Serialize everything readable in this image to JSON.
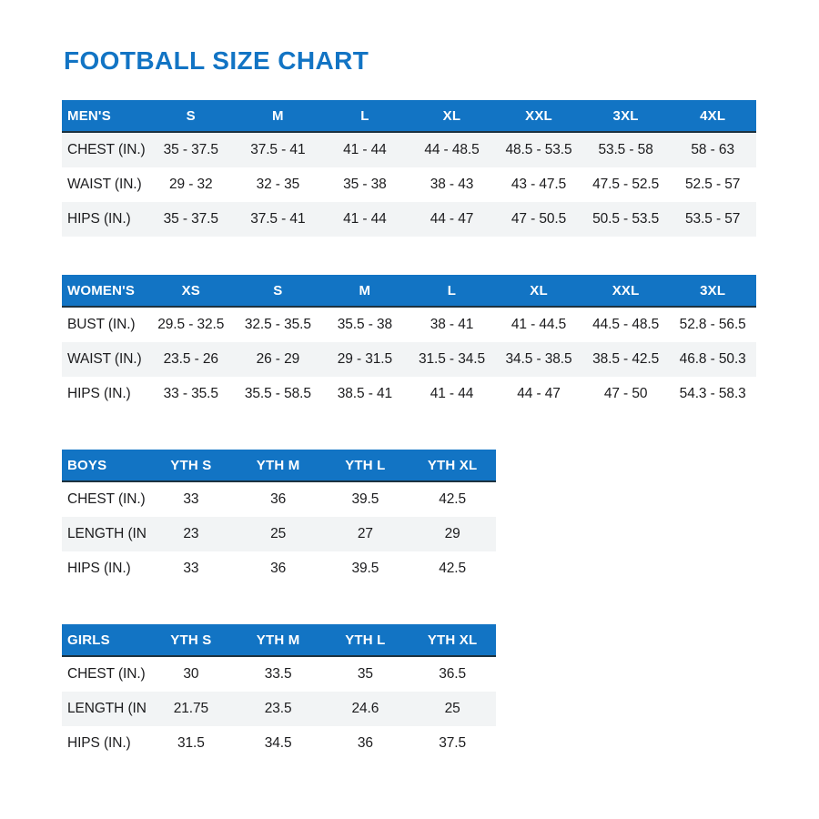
{
  "page": {
    "title": "FOOTBALL SIZE CHART"
  },
  "colors": {
    "accent_blue": "#1274C4",
    "header_text": "#FFFFFF",
    "stripe_gray": "#F2F4F5",
    "body_text": "#1C1C1E"
  },
  "tables": [
    {
      "id": "mens",
      "size": "wide",
      "header": [
        "MEN'S",
        "S",
        "M",
        "L",
        "XL",
        "XXL",
        "3XL",
        "4XL"
      ],
      "rows": [
        {
          "label": "CHEST (IN.)",
          "striped": true,
          "values": [
            "35 - 37.5",
            "37.5 - 41",
            "41 - 44",
            "44 - 48.5",
            "48.5 - 53.5",
            "53.5 - 58",
            "58 - 63"
          ]
        },
        {
          "label": "WAIST (IN.)",
          "striped": false,
          "values": [
            "29 - 32",
            "32 - 35",
            "35 - 38",
            "38 - 43",
            "43 - 47.5",
            "47.5 - 52.5",
            "52.5 - 57"
          ]
        },
        {
          "label": "HIPS (IN.)",
          "striped": true,
          "values": [
            "35 - 37.5",
            "37.5 - 41",
            "41 - 44",
            "44 - 47",
            "47 - 50.5",
            "50.5 - 53.5",
            "53.5 - 57"
          ]
        }
      ]
    },
    {
      "id": "womens",
      "size": "wide",
      "header": [
        "WOMEN'S",
        "XS",
        "S",
        "M",
        "L",
        "XL",
        "XXL",
        "3XL"
      ],
      "rows": [
        {
          "label": "BUST (IN.)",
          "striped": false,
          "values": [
            "29.5 - 32.5",
            "32.5 - 35.5",
            "35.5 - 38",
            "38 - 41",
            "41 - 44.5",
            "44.5 - 48.5",
            "52.8 - 56.5"
          ]
        },
        {
          "label": "WAIST (IN.)",
          "striped": true,
          "values": [
            "23.5 - 26",
            "26 - 29",
            "29 - 31.5",
            "31.5 - 34.5",
            "34.5 - 38.5",
            "38.5 - 42.5",
            "46.8 - 50.3"
          ]
        },
        {
          "label": "HIPS (IN.)",
          "striped": false,
          "values": [
            "33 - 35.5",
            "35.5 - 58.5",
            "38.5 - 41",
            "41 - 44",
            "44 - 47",
            "47 - 50",
            "54.3 - 58.3"
          ]
        }
      ]
    },
    {
      "id": "boys",
      "size": "narrow",
      "header": [
        "BOYS",
        "YTH S",
        "YTH M",
        "YTH L",
        "YTH XL"
      ],
      "rows": [
        {
          "label": "CHEST (IN.)",
          "striped": false,
          "values": [
            "33",
            "36",
            "39.5",
            "42.5"
          ]
        },
        {
          "label": "LENGTH (IN.)",
          "striped": true,
          "values": [
            "23",
            "25",
            "27",
            "29"
          ]
        },
        {
          "label": "HIPS (IN.)",
          "striped": false,
          "values": [
            "33",
            "36",
            "39.5",
            "42.5"
          ]
        }
      ]
    },
    {
      "id": "girls",
      "size": "narrow",
      "header": [
        "GIRLS",
        "YTH S",
        "YTH M",
        "YTH L",
        "YTH XL"
      ],
      "rows": [
        {
          "label": "CHEST (IN.)",
          "striped": false,
          "values": [
            "30",
            "33.5",
            "35",
            "36.5"
          ]
        },
        {
          "label": "LENGTH (IN.)",
          "striped": true,
          "values": [
            "21.75",
            "23.5",
            "24.6",
            "25"
          ]
        },
        {
          "label": "HIPS (IN.)",
          "striped": false,
          "values": [
            "31.5",
            "34.5",
            "36",
            "37.5"
          ]
        }
      ]
    }
  ]
}
